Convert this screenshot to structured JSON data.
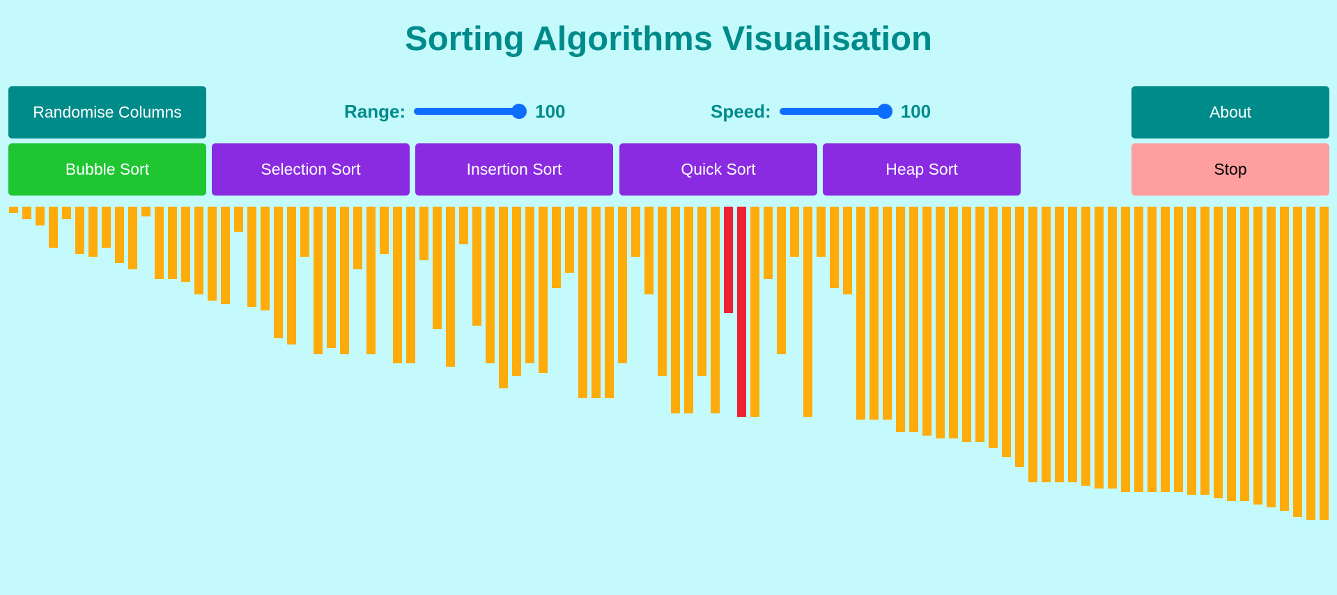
{
  "title": "Sorting Algorithms Visualisation",
  "buttons": {
    "randomise": "Randomise Columns",
    "about": "About",
    "bubble": "Bubble Sort",
    "selection": "Selection Sort",
    "insertion": "Insertion Sort",
    "quick": "Quick Sort",
    "heap": "Heap Sort",
    "stop": "Stop"
  },
  "range": {
    "label": "Range:",
    "value": "100",
    "fraction": 1.0
  },
  "speed": {
    "label": "Speed:",
    "value": "100",
    "fraction": 1.0
  },
  "colors": {
    "background": "#c4fafc",
    "title": "#008b8b",
    "bar": "#ffab0a",
    "bar_active": "#ec2234",
    "teal": "#008b8b",
    "purple": "#8a2be2",
    "green": "#1fc632",
    "stop": "#ff9e9e",
    "slider": "#0d6efd"
  },
  "columns": {
    "max": 100,
    "active_indices": [
      54,
      55
    ],
    "values": [
      2,
      4,
      6,
      13,
      4,
      15,
      16,
      13,
      18,
      20,
      3,
      23,
      23,
      24,
      28,
      30,
      31,
      8,
      32,
      33,
      42,
      44,
      16,
      47,
      45,
      47,
      20,
      47,
      15,
      50,
      50,
      17,
      39,
      51,
      12,
      38,
      50,
      58,
      54,
      50,
      53,
      26,
      21,
      61,
      61,
      61,
      50,
      16,
      28,
      54,
      66,
      66,
      54,
      66,
      34,
      67,
      67,
      23,
      47,
      16,
      67,
      16,
      26,
      28,
      68,
      68,
      68,
      72,
      72,
      73,
      74,
      74,
      75,
      75,
      77,
      80,
      83,
      88,
      88,
      88,
      88,
      89,
      90,
      90,
      91,
      91,
      91,
      91,
      91,
      92,
      92,
      93,
      94,
      94,
      95,
      96,
      97,
      99,
      100,
      100
    ]
  }
}
